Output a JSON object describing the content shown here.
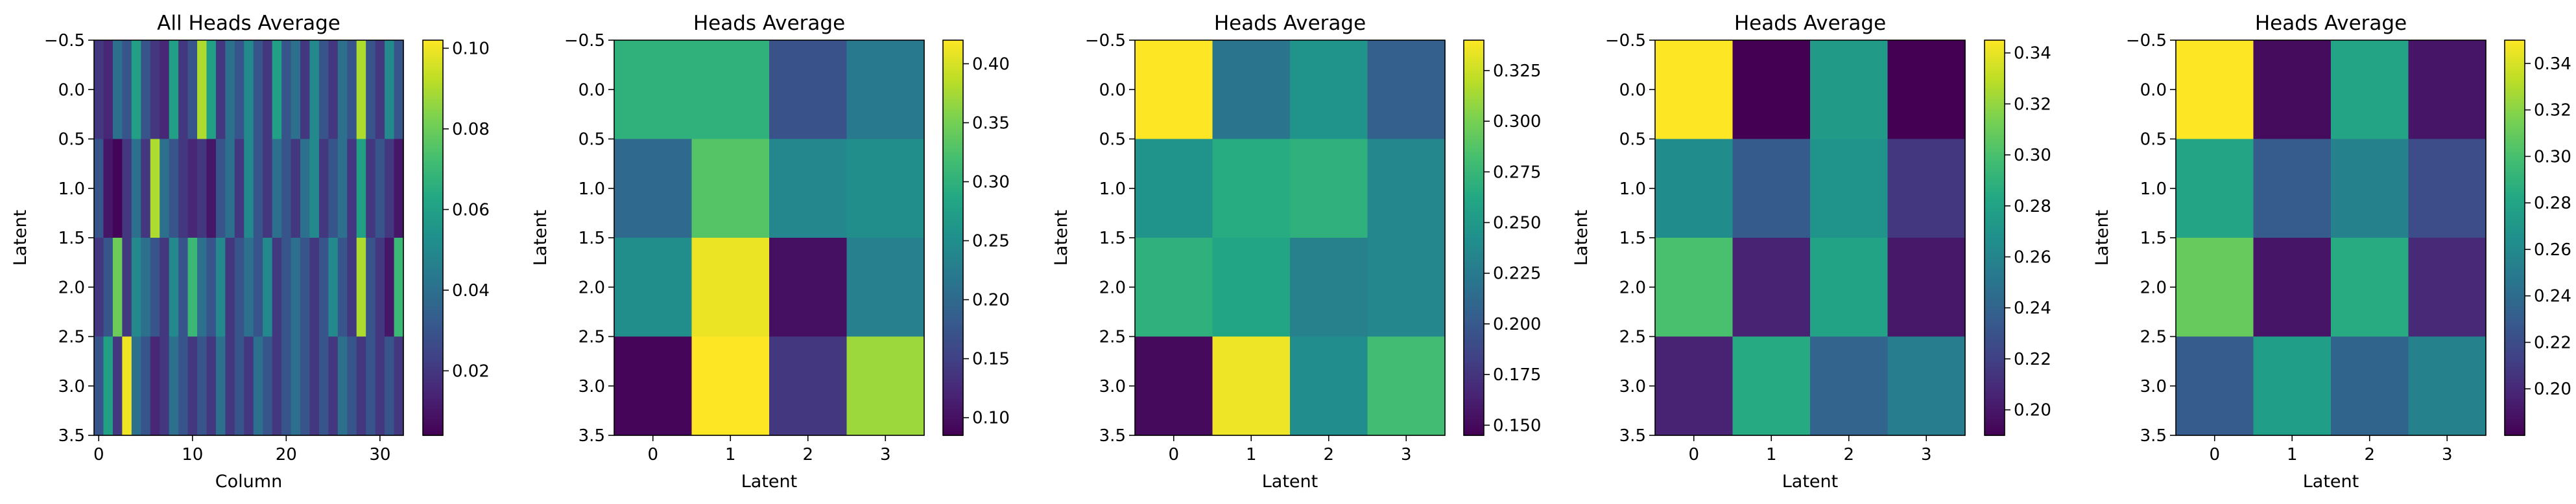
{
  "colormap": "viridis",
  "chart_data": [
    {
      "type": "heatmap",
      "title": "All Heads Average",
      "xlabel": "Column",
      "ylabel": "Latent",
      "n_rows": 4,
      "n_cols": 33,
      "x_ticks": [
        "0",
        "10",
        "20",
        "30"
      ],
      "y_ticks": [
        "−0.5",
        "0.0",
        "0.5",
        "1.0",
        "1.5",
        "2.0",
        "2.5",
        "3.0",
        "3.5"
      ],
      "colorbar_range": [
        0.004,
        0.102
      ],
      "colorbar_ticks": [
        "0.02",
        "0.04",
        "0.06",
        "0.08",
        "0.10"
      ],
      "values": [
        [
          0.02,
          0.015,
          0.04,
          0.03,
          0.06,
          0.03,
          0.02,
          0.015,
          0.06,
          0.02,
          0.03,
          0.09,
          0.06,
          0.02,
          0.04,
          0.03,
          0.05,
          0.03,
          0.02,
          0.06,
          0.03,
          0.04,
          0.02,
          0.05,
          0.03,
          0.02,
          0.04,
          0.03,
          0.09,
          0.03,
          0.02,
          0.05,
          0.03
        ],
        [
          0.03,
          0.01,
          0.005,
          0.02,
          0.04,
          0.02,
          0.09,
          0.04,
          0.03,
          0.02,
          0.015,
          0.02,
          0.01,
          0.03,
          0.04,
          0.02,
          0.05,
          0.03,
          0.02,
          0.04,
          0.03,
          0.02,
          0.04,
          0.05,
          0.02,
          0.03,
          0.04,
          0.02,
          0.06,
          0.02,
          0.03,
          0.02,
          0.01
        ],
        [
          0.02,
          0.03,
          0.08,
          0.02,
          0.05,
          0.04,
          0.03,
          0.02,
          0.05,
          0.03,
          0.07,
          0.04,
          0.03,
          0.05,
          0.02,
          0.03,
          0.04,
          0.03,
          0.05,
          0.02,
          0.03,
          0.04,
          0.03,
          0.02,
          0.03,
          0.05,
          0.03,
          0.02,
          0.09,
          0.03,
          0.02,
          0.01,
          0.07
        ],
        [
          0.03,
          0.06,
          0.02,
          0.1,
          0.04,
          0.03,
          0.015,
          0.02,
          0.04,
          0.03,
          0.02,
          0.03,
          0.02,
          0.04,
          0.02,
          0.03,
          0.02,
          0.04,
          0.03,
          0.02,
          0.03,
          0.04,
          0.03,
          0.02,
          0.03,
          0.02,
          0.04,
          0.03,
          0.02,
          0.03,
          0.02,
          0.03,
          0.02
        ]
      ]
    },
    {
      "type": "heatmap",
      "title": "Heads Average",
      "xlabel": "Latent",
      "ylabel": "Latent",
      "n_rows": 4,
      "n_cols": 4,
      "x_ticks": [
        "0",
        "1",
        "2",
        "3"
      ],
      "y_ticks": [
        "−0.5",
        "0.0",
        "0.5",
        "1.0",
        "1.5",
        "2.0",
        "2.5",
        "3.0",
        "3.5"
      ],
      "colorbar_range": [
        0.085,
        0.42
      ],
      "colorbar_ticks": [
        "0.10",
        "0.15",
        "0.20",
        "0.25",
        "0.30",
        "0.35",
        "0.40"
      ],
      "values": [
        [
          0.3,
          0.3,
          0.17,
          0.22
        ],
        [
          0.2,
          0.33,
          0.24,
          0.25
        ],
        [
          0.25,
          0.41,
          0.1,
          0.23
        ],
        [
          0.09,
          0.42,
          0.14,
          0.37
        ]
      ]
    },
    {
      "type": "heatmap",
      "title": "Heads Average",
      "xlabel": "Latent",
      "ylabel": "Latent",
      "n_rows": 4,
      "n_cols": 4,
      "x_ticks": [
        "0",
        "1",
        "2",
        "3"
      ],
      "y_ticks": [
        "−0.5",
        "0.0",
        "0.5",
        "1.0",
        "1.5",
        "2.0",
        "2.5",
        "3.0",
        "3.5"
      ],
      "colorbar_range": [
        0.145,
        0.34
      ],
      "colorbar_ticks": [
        "0.150",
        "0.175",
        "0.200",
        "0.225",
        "0.250",
        "0.275",
        "0.300",
        "0.325"
      ],
      "values": [
        [
          0.34,
          0.22,
          0.245,
          0.205
        ],
        [
          0.245,
          0.265,
          0.27,
          0.235
        ],
        [
          0.27,
          0.26,
          0.23,
          0.235
        ],
        [
          0.15,
          0.335,
          0.24,
          0.28
        ]
      ]
    },
    {
      "type": "heatmap",
      "title": "Heads Average",
      "xlabel": "Latent",
      "ylabel": "Latent",
      "n_rows": 4,
      "n_cols": 4,
      "x_ticks": [
        "0",
        "1",
        "2",
        "3"
      ],
      "y_ticks": [
        "−0.5",
        "0.0",
        "0.5",
        "1.0",
        "1.5",
        "2.0",
        "2.5",
        "3.0",
        "3.5"
      ],
      "colorbar_range": [
        0.19,
        0.345
      ],
      "colorbar_ticks": [
        "0.20",
        "0.22",
        "0.24",
        "0.26",
        "0.28",
        "0.30",
        "0.32",
        "0.34"
      ],
      "values": [
        [
          0.345,
          0.19,
          0.275,
          0.19
        ],
        [
          0.265,
          0.235,
          0.27,
          0.215
        ],
        [
          0.3,
          0.205,
          0.28,
          0.2
        ],
        [
          0.205,
          0.285,
          0.24,
          0.255
        ]
      ]
    },
    {
      "type": "heatmap",
      "title": "Heads Average",
      "xlabel": "Latent",
      "ylabel": "Latent",
      "n_rows": 4,
      "n_cols": 4,
      "x_ticks": [
        "0",
        "1",
        "2",
        "3"
      ],
      "y_ticks": [
        "−0.5",
        "0.0",
        "0.5",
        "1.0",
        "1.5",
        "2.0",
        "2.5",
        "3.0",
        "3.5"
      ],
      "colorbar_range": [
        0.18,
        0.35
      ],
      "colorbar_ticks": [
        "0.20",
        "0.22",
        "0.24",
        "0.26",
        "0.28",
        "0.30",
        "0.32",
        "0.34"
      ],
      "values": [
        [
          0.35,
          0.185,
          0.28,
          0.19
        ],
        [
          0.28,
          0.23,
          0.255,
          0.22
        ],
        [
          0.31,
          0.19,
          0.285,
          0.2
        ],
        [
          0.23,
          0.275,
          0.235,
          0.255
        ]
      ]
    }
  ]
}
